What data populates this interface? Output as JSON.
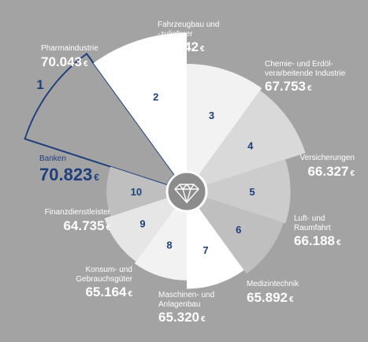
{
  "chart_data": {
    "type": "pie",
    "currency_symbol": "€",
    "sectors": [
      {
        "rank": "1",
        "name": "Banken",
        "value_label": "70.823",
        "value": 70823,
        "highlight": true,
        "color": "#1e3f7c"
      },
      {
        "rank": "2",
        "name": "Pharmaindustrie",
        "value_label": "70.043",
        "value": 70043,
        "color": "#ffffff"
      },
      {
        "rank": "3",
        "name": "Fahrzeugbau und -zulieferer",
        "value_label": "67.942",
        "value": 67942,
        "color": "#f2f2f2"
      },
      {
        "rank": "4",
        "name": "Chemie- und Erdöl- verarbeitende Industrie",
        "value_label": "67.753",
        "value": 67753,
        "color": "#d9d9d9"
      },
      {
        "rank": "5",
        "name": "Versicherungen",
        "value_label": "66.327",
        "value": 66327,
        "color": "#cccccc"
      },
      {
        "rank": "6",
        "name": "Luft- und Raumfahrt",
        "value_label": "66.188",
        "value": 66188,
        "color": "#bfbfbf"
      },
      {
        "rank": "7",
        "name": "Medizintechnik",
        "value_label": "65.892",
        "value": 65892,
        "color": "#ffffff"
      },
      {
        "rank": "8",
        "name": "Maschinen- und Anlagenbau",
        "value_label": "65.320",
        "value": 65320,
        "color": "#f2f2f2"
      },
      {
        "rank": "9",
        "name": "Konsum- und Gebrauchsgüter",
        "value_label": "65.164",
        "value": 65164,
        "color": "#e6e6e6"
      },
      {
        "rank": "10",
        "name": "Finanzdienstleister",
        "value_label": "64.735",
        "value": 64735,
        "color": "#bfbfbf"
      }
    ]
  },
  "colors": {
    "background": "#a3a3a3",
    "accent": "#1e3f7c",
    "hub": "#8c8c8c"
  },
  "center_icon": "diamond-icon"
}
